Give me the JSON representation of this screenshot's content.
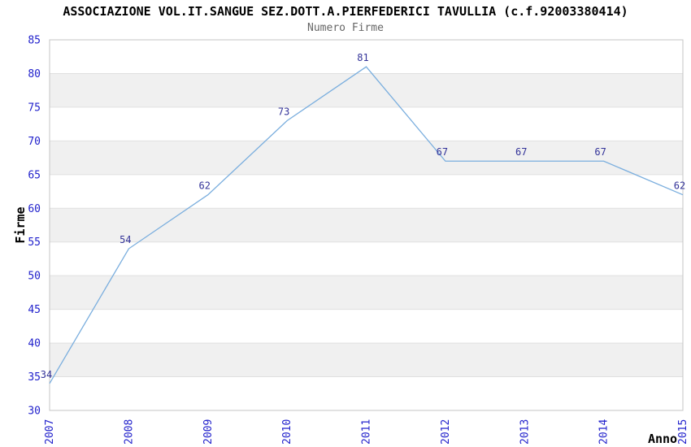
{
  "chart_data": {
    "type": "line",
    "title": "ASSOCIAZIONE VOL.IT.SANGUE SEZ.DOTT.A.PIERFEDERICI TAVULLIA (c.f.92003380414)",
    "subtitle": "Numero Firme",
    "xlabel": "Anno",
    "ylabel": "Firme",
    "x": [
      2007,
      2008,
      2009,
      2010,
      2011,
      2012,
      2013,
      2014,
      2015
    ],
    "values": [
      34,
      54,
      62,
      73,
      81,
      67,
      67,
      67,
      62
    ],
    "ylim": [
      30,
      85
    ],
    "ytick_step": 5,
    "ytick_labels": [
      "30",
      "35",
      "40",
      "45",
      "50",
      "55",
      "60",
      "65",
      "70",
      "75",
      "80",
      "85"
    ],
    "xtick_labels": [
      "2007",
      "2008",
      "2009",
      "2010",
      "2011",
      "2012",
      "2013",
      "2014",
      "2015"
    ],
    "grid": true,
    "legend": "none",
    "x_labels_rotated_degrees": -90,
    "colors": {
      "title": "#000000",
      "subtitle": "#666666",
      "axis_title": "#000000",
      "tick_label": "#2222cc",
      "data_label": "#333399",
      "line": "#7aaede",
      "band_main": "#ffffff",
      "band_alt": "#f0f0f0",
      "gridline": "#e0e0e0",
      "plot_border": "#c5c5c5",
      "background": "#ffffff"
    }
  }
}
